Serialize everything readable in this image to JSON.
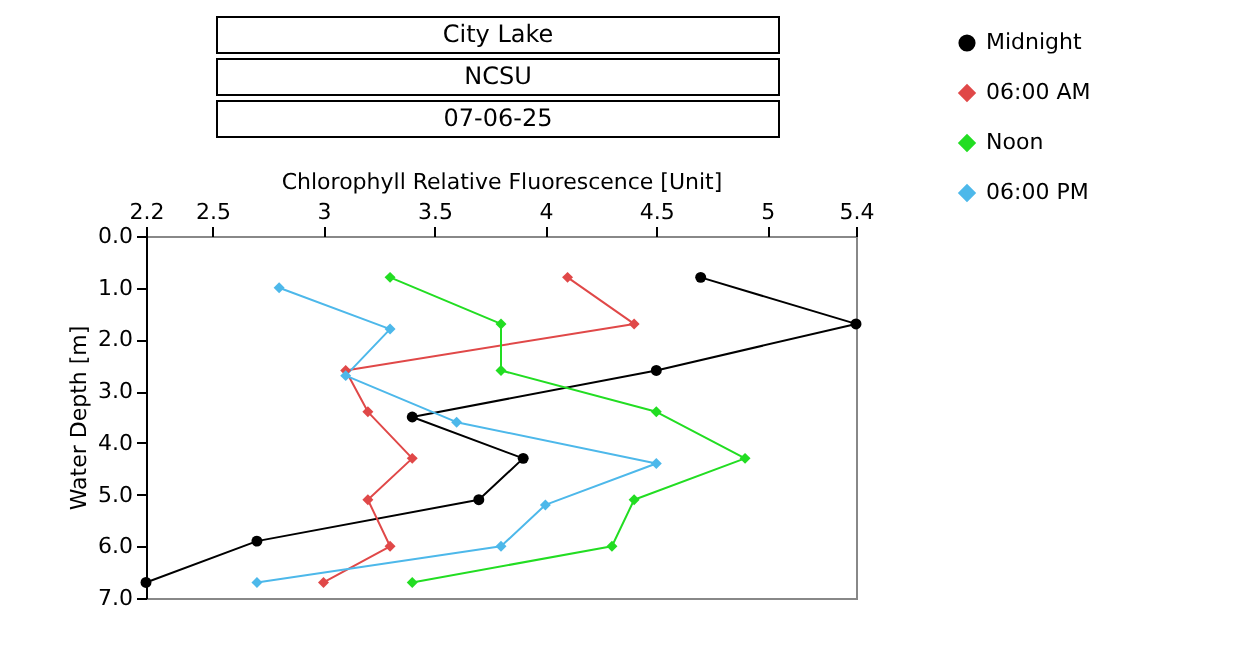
{
  "chart_data": {
    "type": "line",
    "title": "City Lake",
    "subtitle": "NCSU",
    "annotations": [
      "07-06-25"
    ],
    "xlabel": "Chlorophyll Relative Fluorescence [Unit]",
    "ylabel": "Water Depth [m]",
    "xlim": [
      2.2,
      5.4
    ],
    "xticks": [
      2.2,
      2.5,
      3,
      3.5,
      4,
      4.5,
      5,
      5.4
    ],
    "ylim": [
      7,
      0
    ],
    "yticks": [
      {
        "value": 0,
        "label": "0.0"
      },
      {
        "value": 1,
        "label": "1.0"
      },
      {
        "value": 2,
        "label": "2.0"
      },
      {
        "value": 3,
        "label": "3.0"
      },
      {
        "value": 4,
        "label": "4.0"
      },
      {
        "value": 5,
        "label": "5.0"
      },
      {
        "value": 6,
        "label": "6.0"
      },
      {
        "value": 7,
        "label": "7.0"
      }
    ],
    "grid": false,
    "legend": "top right",
    "marker": "diamond",
    "series": [
      {
        "name": "Midnight",
        "color": "#000000",
        "marker": "circle",
        "x": [
          4.7,
          5.4,
          4.5,
          3.4,
          3.9,
          3.7,
          2.7,
          2.2
        ],
        "values": [
          0.8,
          1.7,
          2.6,
          3.5,
          4.3,
          5.1,
          5.9,
          6.7
        ]
      },
      {
        "name": "06:00 AM",
        "color": "#e04848",
        "x": [
          4.1,
          4.4,
          3.1,
          3.2,
          3.4,
          3.2,
          3.3,
          3.0
        ],
        "values": [
          0.8,
          1.7,
          2.6,
          3.4,
          4.3,
          5.1,
          6.0,
          6.7
        ]
      },
      {
        "name": "Noon",
        "color": "#22dd22",
        "x": [
          3.3,
          3.8,
          3.8,
          4.5,
          4.9,
          4.4,
          4.3,
          3.4
        ],
        "values": [
          0.8,
          1.7,
          2.6,
          3.4,
          4.3,
          5.1,
          6.0,
          6.7
        ]
      },
      {
        "name": "06:00 PM",
        "color": "#4db8ea",
        "x": [
          2.8,
          3.3,
          3.1,
          3.6,
          4.5,
          4.0,
          3.8,
          2.7
        ],
        "values": [
          1.0,
          1.8,
          2.7,
          3.6,
          4.4,
          5.2,
          6.0,
          6.7
        ]
      }
    ]
  }
}
